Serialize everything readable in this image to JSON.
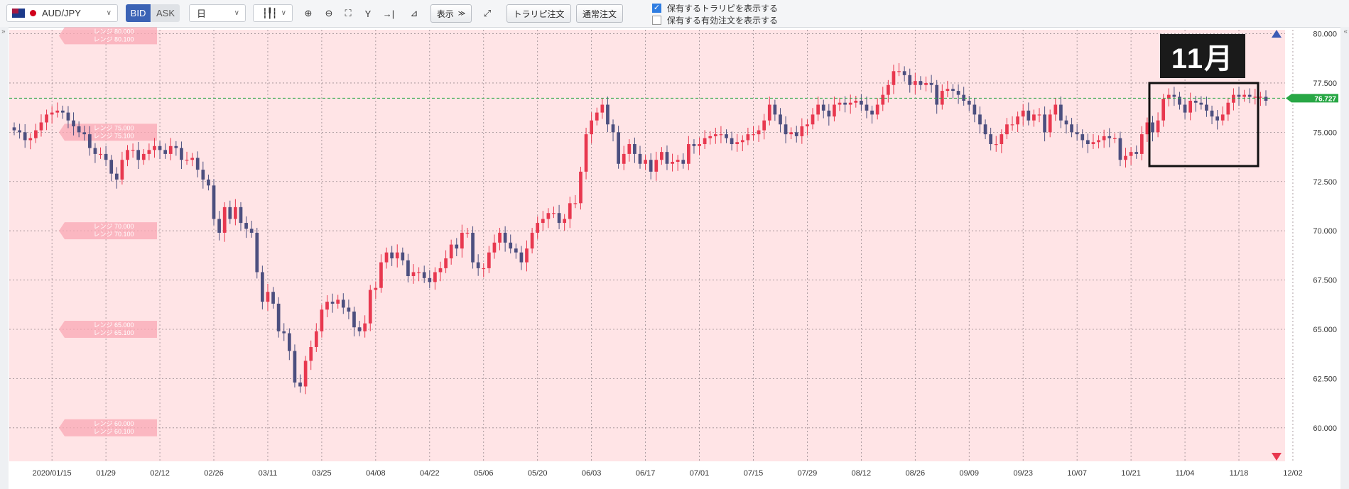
{
  "toolbar": {
    "symbol": "AUD/JPY",
    "bid_label": "BID",
    "ask_label": "ASK",
    "timeframe": "日",
    "display_label": "表示",
    "trap_order_button": "トラリピ注文",
    "normal_order_button": "通常注文",
    "show_trap_checkbox": "保有するトラリピを表示する",
    "show_trap_checked": true,
    "show_orders_checkbox": "保有する有効注文を表示する",
    "show_orders_checked": false
  },
  "annotation": {
    "callout": "11月"
  },
  "colors": {
    "up": "#e8384f",
    "down": "#4c4f7f",
    "background": "#ffe4e6",
    "current_line": "#28a745"
  },
  "chart_data": {
    "type": "candlestick",
    "title": "",
    "current_price": "76.727",
    "ylim": [
      58.3,
      80.2
    ],
    "y_ticks": [
      "80.000",
      "77.500",
      "75.000",
      "72.500",
      "70.000",
      "67.500",
      "65.000",
      "62.500",
      "60.000"
    ],
    "x_ticks": [
      {
        "label": "2020/01/15",
        "i": 7
      },
      {
        "label": "01/29",
        "i": 17
      },
      {
        "label": "02/12",
        "i": 27
      },
      {
        "label": "02/26",
        "i": 37
      },
      {
        "label": "03/11",
        "i": 47
      },
      {
        "label": "03/25",
        "i": 57
      },
      {
        "label": "04/08",
        "i": 67
      },
      {
        "label": "04/22",
        "i": 77
      },
      {
        "label": "05/06",
        "i": 87
      },
      {
        "label": "05/20",
        "i": 97
      },
      {
        "label": "06/03",
        "i": 107
      },
      {
        "label": "06/17",
        "i": 117
      },
      {
        "label": "07/01",
        "i": 127
      },
      {
        "label": "07/15",
        "i": 137
      },
      {
        "label": "07/29",
        "i": 147
      },
      {
        "label": "08/12",
        "i": 157
      },
      {
        "label": "08/26",
        "i": 167
      },
      {
        "label": "09/09",
        "i": 177
      },
      {
        "label": "09/23",
        "i": 187
      },
      {
        "label": "10/07",
        "i": 197
      },
      {
        "label": "10/21",
        "i": 207
      },
      {
        "label": "11/04",
        "i": 217
      },
      {
        "label": "11/18",
        "i": 227
      },
      {
        "label": "12/02",
        "i": 237
      }
    ],
    "range_labels": [
      {
        "y": 79.9,
        "lines": [
          "レンジ 80.000",
          "レンジ 80.100"
        ]
      },
      {
        "y": 75.0,
        "lines": [
          "レンジ 75.000",
          "レンジ 75.100"
        ]
      },
      {
        "y": 70.0,
        "lines": [
          "レンジ 70.000",
          "レンジ 70.100"
        ]
      },
      {
        "y": 65.0,
        "lines": [
          "レンジ 65.000",
          "レンジ 65.100"
        ]
      },
      {
        "y": 60.0,
        "lines": [
          "レンジ 60.000",
          "レンジ 60.100"
        ]
      }
    ],
    "close": [
      75.1,
      75.0,
      74.6,
      74.7,
      75.1,
      75.5,
      75.9,
      76.0,
      76.1,
      76.0,
      75.6,
      75.3,
      75.0,
      74.9,
      74.2,
      73.9,
      73.9,
      73.6,
      72.9,
      72.6,
      73.6,
      74.1,
      74.1,
      73.6,
      73.9,
      74.1,
      74.3,
      74.1,
      73.9,
      74.3,
      74.2,
      73.6,
      73.6,
      73.7,
      73.1,
      72.6,
      72.3,
      70.6,
      69.9,
      71.2,
      70.6,
      71.2,
      70.4,
      70.1,
      69.9,
      67.9,
      66.4,
      66.9,
      66.3,
      64.9,
      64.8,
      63.9,
      62.3,
      62.1,
      63.4,
      64.1,
      64.9,
      66.0,
      66.4,
      66.3,
      66.5,
      66.1,
      65.9,
      65.1,
      64.9,
      65.3,
      67.0,
      67.1,
      68.4,
      68.9,
      68.6,
      68.9,
      68.5,
      67.7,
      67.9,
      67.9,
      67.6,
      67.4,
      67.9,
      68.1,
      68.6,
      69.3,
      69.1,
      69.9,
      69.9,
      68.4,
      68.1,
      68.1,
      68.9,
      69.4,
      69.9,
      69.4,
      69.1,
      68.9,
      68.4,
      69.1,
      69.9,
      70.4,
      70.6,
      70.9,
      70.9,
      70.4,
      70.6,
      71.4,
      71.4,
      73.0,
      74.9,
      75.6,
      76.0,
      76.4,
      75.4,
      75.0,
      73.4,
      73.9,
      74.4,
      73.9,
      73.4,
      73.6,
      73.0,
      73.6,
      74.0,
      73.4,
      73.5,
      73.6,
      73.4,
      74.4,
      74.3,
      74.4,
      74.7,
      74.8,
      74.9,
      74.9,
      74.7,
      74.4,
      74.5,
      74.6,
      74.9,
      74.9,
      75.1,
      75.6,
      76.4,
      75.9,
      75.4,
      74.9,
      75.0,
      74.8,
      75.3,
      75.4,
      75.9,
      76.4,
      76.1,
      75.8,
      76.4,
      76.5,
      76.4,
      76.5,
      76.6,
      76.4,
      76.1,
      75.9,
      76.4,
      76.9,
      77.4,
      78.1,
      78.1,
      77.9,
      77.4,
      77.6,
      77.4,
      77.5,
      77.4,
      76.4,
      77.1,
      77.2,
      77.1,
      76.9,
      76.6,
      76.4,
      75.9,
      75.4,
      74.9,
      74.4,
      74.4,
      74.9,
      75.4,
      75.4,
      75.8,
      76.1,
      75.6,
      75.9,
      75.9,
      75.0,
      75.9,
      76.4,
      75.6,
      75.4,
      75.0,
      74.9,
      74.6,
      74.4,
      74.5,
      74.6,
      74.8,
      74.7,
      74.7,
      73.6,
      73.8,
      74.0,
      73.9,
      74.9,
      75.5,
      75.0,
      75.6,
      76.7,
      76.9,
      76.8,
      76.4,
      76.0,
      76.6,
      76.5,
      76.4,
      76.1,
      75.8,
      75.6,
      75.9,
      76.5,
      76.9,
      76.8,
      76.9,
      76.8,
      76.8,
      76.8,
      76.6
    ]
  }
}
